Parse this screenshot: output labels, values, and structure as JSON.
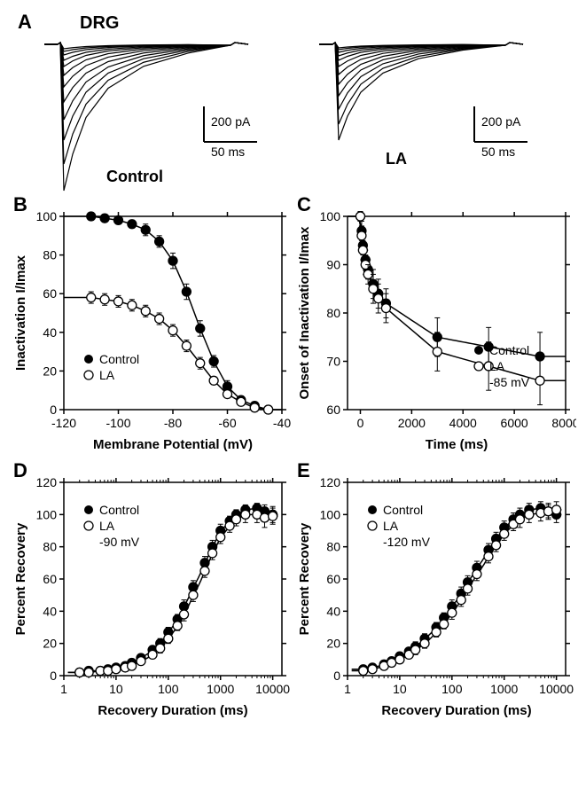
{
  "panelA": {
    "label": "A",
    "title": "DRG",
    "left_label": "Control",
    "right_label": "LA",
    "scale_x_label": "50 ms",
    "scale_y_label": "200 pA",
    "trace_color": "#000000",
    "trace_width": 1.2,
    "traces_left_depths": [
      5,
      8,
      12,
      18,
      25,
      35,
      48,
      65,
      85,
      108,
      135,
      165
    ],
    "traces_right_depths": [
      4,
      6,
      9,
      13,
      18,
      25,
      34,
      45,
      58,
      73,
      90,
      108
    ]
  },
  "panelB": {
    "label": "B",
    "xlabel": "Membrane Potential (mV)",
    "ylabel": "Inactivation I/Imax",
    "legend_control": "Control",
    "legend_la": "LA",
    "xlim": [
      -120,
      -40
    ],
    "xticks": [
      -120,
      -100,
      -80,
      -60,
      -40
    ],
    "ylim": [
      0,
      100
    ],
    "yticks": [
      0,
      20,
      40,
      60,
      80,
      100
    ],
    "marker_size": 5,
    "axis_fontsize": 14,
    "label_fontsize": 15,
    "legend_fontsize": 14,
    "control": {
      "x": [
        -110,
        -105,
        -100,
        -95,
        -90,
        -85,
        -80,
        -75,
        -70,
        -65,
        -60,
        -55,
        -50,
        -45
      ],
      "y": [
        100,
        99,
        98,
        96,
        93,
        87,
        77,
        61,
        42,
        25,
        12,
        5,
        2,
        0
      ],
      "err": [
        2,
        2,
        2,
        2,
        3,
        3,
        4,
        4,
        4,
        3,
        3,
        2,
        1,
        1
      ]
    },
    "la": {
      "x": [
        -110,
        -105,
        -100,
        -95,
        -90,
        -85,
        -80,
        -75,
        -70,
        -65,
        -60,
        -55,
        -50,
        -45
      ],
      "y": [
        58,
        57,
        56,
        54,
        51,
        47,
        41,
        33,
        24,
        15,
        8,
        4,
        1,
        0
      ],
      "err": [
        3,
        3,
        3,
        3,
        3,
        3,
        3,
        3,
        3,
        2,
        2,
        1,
        1,
        1
      ]
    }
  },
  "panelC": {
    "label": "C",
    "xlabel": "Time (ms)",
    "ylabel": "Onset of Inactivation I/Imax",
    "legend_control": "Control",
    "legend_la": "LA",
    "condition": "-85 mV",
    "xlim": [
      -500,
      8000
    ],
    "xticks": [
      0,
      2000,
      4000,
      6000,
      8000
    ],
    "ylim": [
      60,
      100
    ],
    "yticks": [
      60,
      70,
      80,
      90,
      100
    ],
    "marker_size": 5,
    "axis_fontsize": 14,
    "label_fontsize": 15,
    "control": {
      "x": [
        0,
        50,
        100,
        200,
        300,
        500,
        700,
        1000,
        3000,
        5000,
        7000
      ],
      "y": [
        100,
        97,
        94,
        91,
        89,
        86,
        84,
        82,
        75,
        73,
        71
      ],
      "err": [
        1,
        2,
        2,
        2,
        2,
        3,
        3,
        3,
        4,
        4,
        5
      ]
    },
    "la": {
      "x": [
        0,
        50,
        100,
        200,
        300,
        500,
        700,
        1000,
        3000,
        5000,
        7000
      ],
      "y": [
        100,
        96,
        93,
        90,
        88,
        85,
        83,
        81,
        72,
        69,
        66
      ],
      "err": [
        1,
        2,
        2,
        2,
        2,
        3,
        3,
        3,
        4,
        5,
        5
      ]
    }
  },
  "panelD": {
    "label": "D",
    "xlabel": "Recovery Duration (ms)",
    "ylabel": "Percent  Recovery",
    "legend_control": "Control",
    "legend_la": "LA",
    "condition": "-90 mV",
    "xlim": [
      1,
      15000
    ],
    "xticks": [
      1,
      10,
      100,
      1000,
      10000
    ],
    "ylim": [
      0,
      120
    ],
    "yticks": [
      0,
      20,
      40,
      60,
      80,
      100,
      120
    ],
    "marker_size": 5,
    "axis_fontsize": 14,
    "label_fontsize": 15,
    "control": {
      "x": [
        2,
        3,
        5,
        7,
        10,
        15,
        20,
        30,
        50,
        70,
        100,
        150,
        200,
        300,
        500,
        700,
        1000,
        1500,
        2000,
        3000,
        5000,
        7000,
        10000
      ],
      "y": [
        2,
        3,
        3,
        4,
        5,
        6,
        8,
        11,
        16,
        20,
        27,
        35,
        43,
        55,
        70,
        80,
        90,
        96,
        100,
        103,
        104,
        102,
        100
      ],
      "err": [
        1,
        1,
        1,
        1,
        1,
        1,
        2,
        2,
        2,
        3,
        3,
        3,
        4,
        4,
        4,
        4,
        4,
        3,
        3,
        3,
        3,
        4,
        5
      ]
    },
    "la": {
      "x": [
        2,
        3,
        5,
        7,
        10,
        15,
        20,
        30,
        50,
        70,
        100,
        150,
        200,
        300,
        500,
        700,
        1000,
        1500,
        2000,
        3000,
        5000,
        7000,
        10000
      ],
      "y": [
        2,
        2,
        3,
        3,
        4,
        5,
        6,
        9,
        13,
        17,
        23,
        31,
        38,
        50,
        65,
        76,
        86,
        93,
        97,
        100,
        100,
        98,
        99
      ],
      "err": [
        1,
        1,
        1,
        1,
        1,
        1,
        2,
        2,
        2,
        3,
        3,
        3,
        4,
        4,
        4,
        4,
        4,
        4,
        4,
        5,
        5,
        6,
        5
      ]
    }
  },
  "panelE": {
    "label": "E",
    "xlabel": "Recovery Duration (ms)",
    "ylabel": "Percent  Recovery",
    "legend_control": "Control",
    "legend_la": "LA",
    "condition": "-120 mV",
    "xlim": [
      1,
      15000
    ],
    "xticks": [
      1,
      10,
      100,
      1000,
      10000
    ],
    "ylim": [
      0,
      120
    ],
    "yticks": [
      0,
      20,
      40,
      60,
      80,
      100,
      120
    ],
    "marker_size": 5,
    "axis_fontsize": 14,
    "label_fontsize": 15,
    "control": {
      "x": [
        2,
        3,
        5,
        7,
        10,
        15,
        20,
        30,
        50,
        70,
        100,
        150,
        200,
        300,
        500,
        700,
        1000,
        1500,
        2000,
        3000,
        5000,
        7000,
        10000
      ],
      "y": [
        4,
        5,
        7,
        9,
        12,
        15,
        18,
        23,
        30,
        36,
        43,
        51,
        58,
        67,
        78,
        85,
        92,
        97,
        100,
        103,
        104,
        102,
        100
      ],
      "err": [
        1,
        1,
        2,
        2,
        2,
        2,
        3,
        3,
        3,
        3,
        4,
        4,
        4,
        4,
        4,
        4,
        4,
        4,
        4,
        4,
        4,
        4,
        5
      ]
    },
    "la": {
      "x": [
        2,
        3,
        5,
        7,
        10,
        15,
        20,
        30,
        50,
        70,
        100,
        150,
        200,
        300,
        500,
        700,
        1000,
        1500,
        2000,
        3000,
        5000,
        7000,
        10000
      ],
      "y": [
        3,
        4,
        6,
        8,
        10,
        13,
        16,
        20,
        27,
        32,
        39,
        47,
        54,
        63,
        74,
        81,
        88,
        94,
        97,
        100,
        101,
        102,
        103
      ],
      "err": [
        1,
        1,
        2,
        2,
        2,
        2,
        3,
        3,
        3,
        3,
        4,
        4,
        4,
        4,
        4,
        4,
        4,
        4,
        5,
        5,
        5,
        5,
        5
      ]
    }
  },
  "colors": {
    "filled": "#000000",
    "open_fill": "#ffffff",
    "open_stroke": "#000000",
    "line": "#000000",
    "axis": "#000000"
  }
}
